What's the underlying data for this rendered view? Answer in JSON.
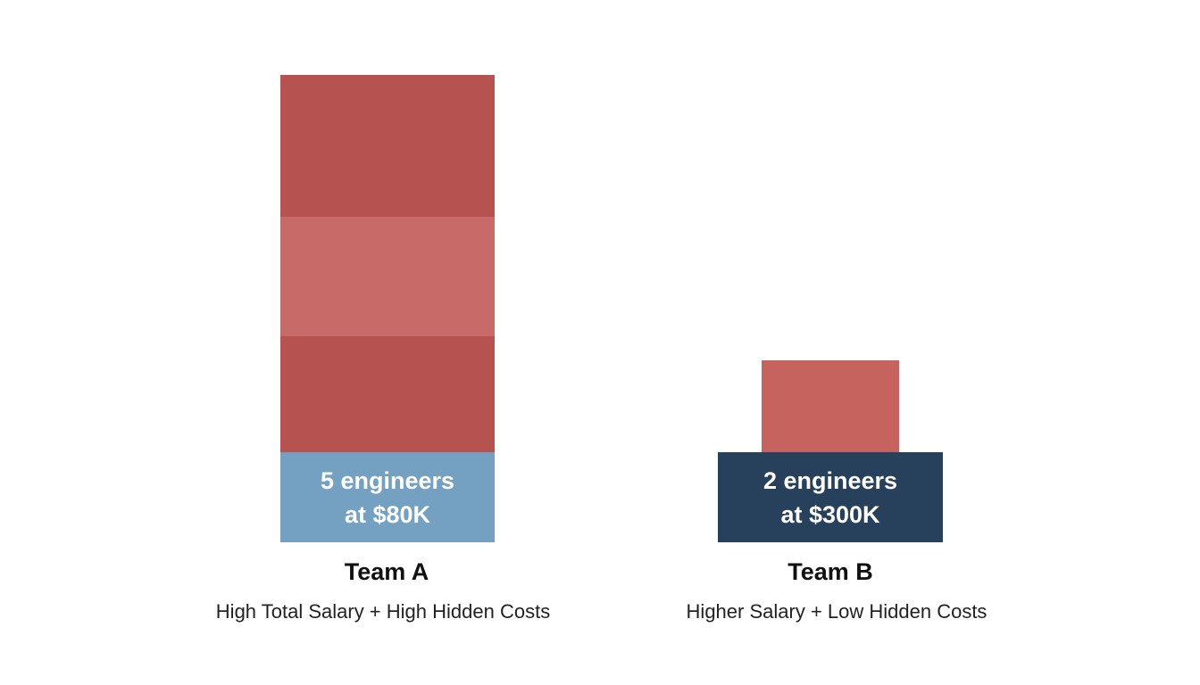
{
  "colors": {
    "hidden_cost_dark": "#b65350",
    "hidden_cost_light": "#c86a67",
    "team_b_hidden": "#c6635f",
    "team_a_salary": "#74a0c2",
    "team_b_salary": "#27415c"
  },
  "team_a": {
    "title": "Team A",
    "subtitle": "High Total Salary + High Hidden Costs",
    "salary_label_line1": "5 engineers",
    "salary_label_line2": "at $80K"
  },
  "team_b": {
    "title": "Team B",
    "subtitle": "Higher Salary + Low Hidden Costs",
    "salary_label_line1": "2 engineers",
    "salary_label_line2": "at $300K"
  }
}
